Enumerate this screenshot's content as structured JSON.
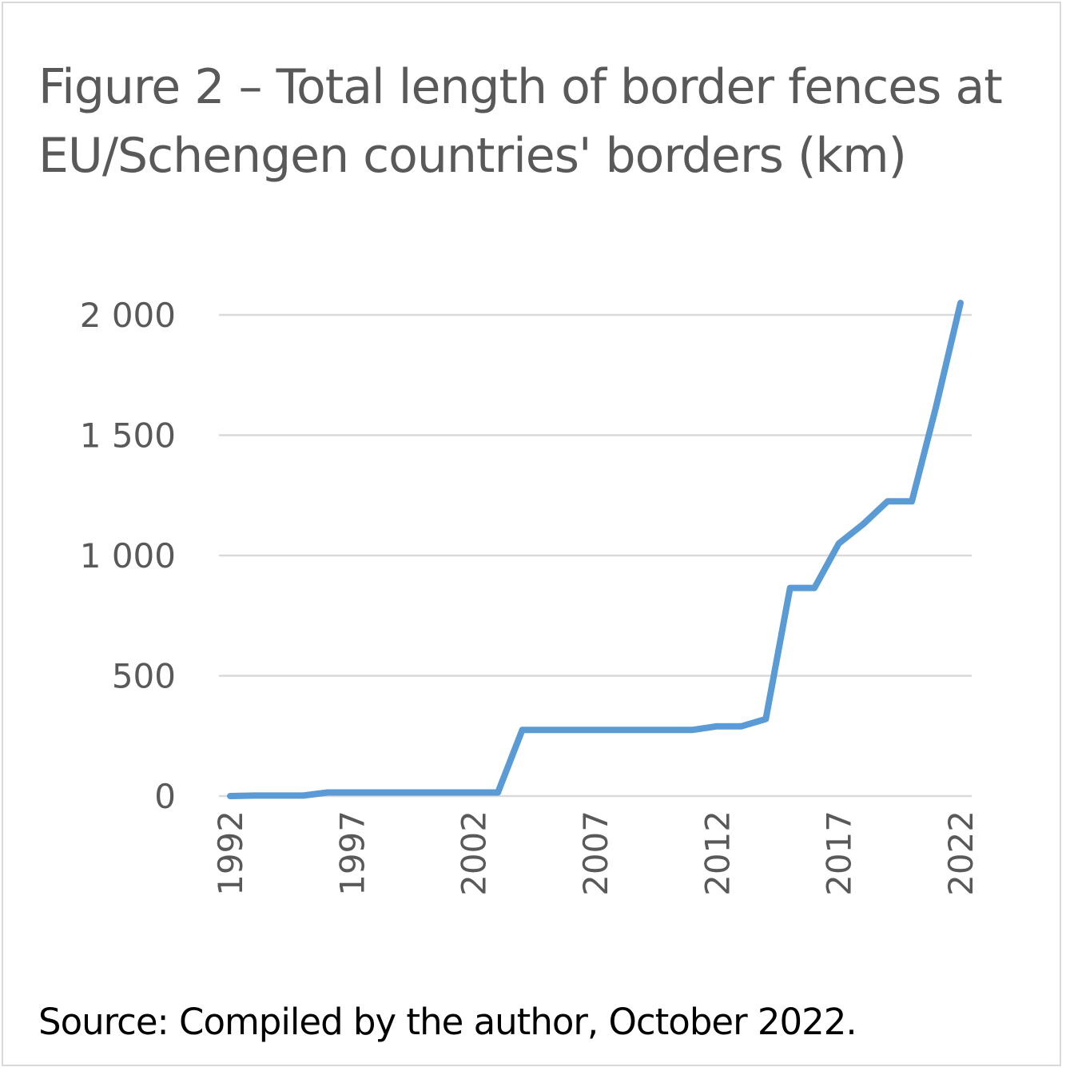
{
  "figure": {
    "title": "Figure 2 – Total length of border fences at EU/Schengen countries' borders (km)",
    "source": "Source: Compiled by the author, October 2022."
  },
  "chart_data": {
    "type": "line",
    "title": "Figure 2 – Total length of border fences at EU/Schengen countries' borders (km)",
    "xlabel": "",
    "ylabel": "",
    "ylim": [
      0,
      2000
    ],
    "yticks": [
      0,
      500,
      1000,
      1500,
      2000
    ],
    "ytick_labels": [
      "0",
      "500",
      "1 000",
      "1 500",
      "2 000"
    ],
    "xticks": [
      1992,
      1997,
      2002,
      2007,
      2012,
      2017,
      2022
    ],
    "xtick_labels": [
      "1992",
      "1997",
      "2002",
      "2007",
      "2012",
      "2017",
      "2022"
    ],
    "grid": true,
    "legend": "none",
    "line_color": "#5b9bd5",
    "grid_color": "#d9d9d9",
    "x": [
      1992,
      1993,
      1994,
      1995,
      1996,
      1997,
      1998,
      1999,
      2000,
      2001,
      2002,
      2003,
      2004,
      2005,
      2006,
      2007,
      2008,
      2009,
      2010,
      2011,
      2012,
      2013,
      2014,
      2015,
      2016,
      2017,
      2018,
      2019,
      2020,
      2021,
      2022
    ],
    "series": [
      {
        "values": [
          0,
          2,
          2,
          2,
          15,
          15,
          15,
          15,
          15,
          15,
          15,
          15,
          275,
          275,
          275,
          275,
          275,
          275,
          275,
          275,
          290,
          290,
          320,
          865,
          865,
          1050,
          1130,
          1225,
          1225,
          1620,
          2050
        ]
      }
    ]
  }
}
